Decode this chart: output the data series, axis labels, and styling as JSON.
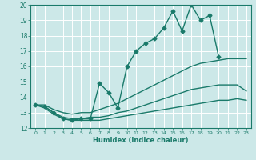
{
  "title": "",
  "xlabel": "Humidex (Indice chaleur)",
  "ylabel": "",
  "bg_color": "#cce8e8",
  "grid_color": "#ffffff",
  "line_color": "#1a7a6a",
  "xlim": [
    -0.5,
    23.5
  ],
  "ylim": [
    12,
    20
  ],
  "yticks": [
    12,
    13,
    14,
    15,
    16,
    17,
    18,
    19,
    20
  ],
  "xticks": [
    0,
    1,
    2,
    3,
    4,
    5,
    6,
    7,
    8,
    9,
    10,
    11,
    12,
    13,
    14,
    15,
    16,
    17,
    18,
    19,
    20,
    21,
    22,
    23
  ],
  "series": [
    {
      "x": [
        0,
        1,
        2,
        3,
        4,
        5,
        6,
        7,
        8,
        9,
        10,
        11,
        12,
        13,
        14,
        15,
        16,
        17,
        18,
        19,
        20
      ],
      "y": [
        13.5,
        13.4,
        13.0,
        12.6,
        12.5,
        12.6,
        12.6,
        14.9,
        14.3,
        13.3,
        16.0,
        17.0,
        17.5,
        17.8,
        18.5,
        19.6,
        18.3,
        20.0,
        19.0,
        19.3,
        16.6
      ],
      "marker": "D",
      "markersize": 2.5,
      "linewidth": 1.0
    },
    {
      "x": [
        0,
        1,
        2,
        3,
        4,
        5,
        6,
        7,
        8,
        9,
        10,
        11,
        12,
        13,
        14,
        15,
        16,
        17,
        18,
        19,
        20,
        21,
        22,
        23
      ],
      "y": [
        13.5,
        13.5,
        13.2,
        13.0,
        12.9,
        13.0,
        13.0,
        13.2,
        13.4,
        13.6,
        13.9,
        14.2,
        14.5,
        14.8,
        15.1,
        15.4,
        15.7,
        16.0,
        16.2,
        16.3,
        16.4,
        16.5,
        16.5,
        16.5
      ],
      "marker": null,
      "markersize": 0,
      "linewidth": 1.0
    },
    {
      "x": [
        0,
        1,
        2,
        3,
        4,
        5,
        6,
        7,
        8,
        9,
        10,
        11,
        12,
        13,
        14,
        15,
        16,
        17,
        18,
        19,
        20,
        21,
        22,
        23
      ],
      "y": [
        13.5,
        13.4,
        13.0,
        12.7,
        12.6,
        12.6,
        12.7,
        12.7,
        12.8,
        13.0,
        13.1,
        13.3,
        13.5,
        13.7,
        13.9,
        14.1,
        14.3,
        14.5,
        14.6,
        14.7,
        14.8,
        14.8,
        14.8,
        14.4
      ],
      "marker": null,
      "markersize": 0,
      "linewidth": 1.0
    },
    {
      "x": [
        0,
        1,
        2,
        3,
        4,
        5,
        6,
        7,
        8,
        9,
        10,
        11,
        12,
        13,
        14,
        15,
        16,
        17,
        18,
        19,
        20,
        21,
        22,
        23
      ],
      "y": [
        13.5,
        13.3,
        12.9,
        12.6,
        12.5,
        12.5,
        12.5,
        12.5,
        12.6,
        12.7,
        12.8,
        12.9,
        13.0,
        13.1,
        13.2,
        13.3,
        13.4,
        13.5,
        13.6,
        13.7,
        13.8,
        13.8,
        13.9,
        13.8
      ],
      "marker": null,
      "markersize": 0,
      "linewidth": 1.0
    }
  ]
}
